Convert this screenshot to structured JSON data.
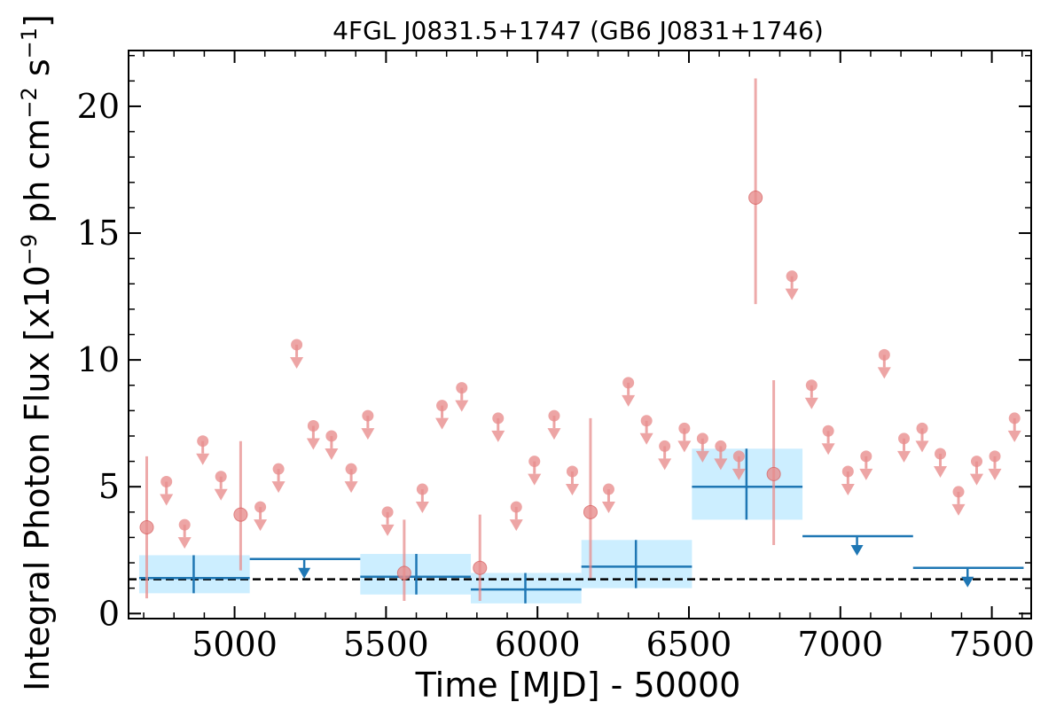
{
  "chart_data": {
    "type": "scatter",
    "title": "4FGL J0831.5+1747 (GB6 J0831+1746)",
    "xlabel": "Time [MJD] - 50000",
    "ylabel_parts": {
      "main": "Integral Photon Flux [x10",
      "exp1": "−9",
      "mid": " ph cm",
      "exp2": "−2",
      "mid2": " s",
      "exp3": "−1",
      "end": "]"
    },
    "xlim": [
      4650,
      7630
    ],
    "ylim": [
      -0.2,
      22.2
    ],
    "xticks": [
      5000,
      5500,
      6000,
      6500,
      7000,
      7500
    ],
    "yticks": [
      0,
      5,
      10,
      15,
      20
    ],
    "mean_flux": 1.35,
    "colors": {
      "short_bins": "#e88e8e",
      "long_bins": "#1f77b4",
      "long_band": "#cceeff",
      "mean_line": "#000000"
    },
    "short_bins_detections": [
      {
        "x": 4710,
        "y": 3.4,
        "yerr": [
          0.6,
          6.2
        ]
      },
      {
        "x": 5020,
        "y": 3.9,
        "yerr": [
          1.7,
          6.8
        ]
      },
      {
        "x": 5560,
        "y": 1.6,
        "yerr": [
          0.5,
          3.7
        ]
      },
      {
        "x": 5810,
        "y": 1.8,
        "yerr": [
          0.5,
          3.9
        ]
      },
      {
        "x": 6175,
        "y": 4.0,
        "yerr": [
          1.4,
          7.7
        ]
      },
      {
        "x": 6720,
        "y": 16.4,
        "yerr": [
          12.2,
          21.1
        ]
      },
      {
        "x": 6780,
        "y": 5.5,
        "yerr": [
          2.7,
          9.2
        ]
      }
    ],
    "short_bins_upper_limits": [
      {
        "x": 4775,
        "y": 5.2
      },
      {
        "x": 4835,
        "y": 3.5
      },
      {
        "x": 4895,
        "y": 6.8
      },
      {
        "x": 4955,
        "y": 5.4
      },
      {
        "x": 5085,
        "y": 4.2
      },
      {
        "x": 5145,
        "y": 5.7
      },
      {
        "x": 5205,
        "y": 10.6
      },
      {
        "x": 5260,
        "y": 7.4
      },
      {
        "x": 5320,
        "y": 7.0
      },
      {
        "x": 5385,
        "y": 5.7
      },
      {
        "x": 5440,
        "y": 7.8
      },
      {
        "x": 5505,
        "y": 4.0
      },
      {
        "x": 5620,
        "y": 4.9
      },
      {
        "x": 5685,
        "y": 8.2
      },
      {
        "x": 5750,
        "y": 8.9
      },
      {
        "x": 5870,
        "y": 7.7
      },
      {
        "x": 5930,
        "y": 4.2
      },
      {
        "x": 5990,
        "y": 6.0
      },
      {
        "x": 6055,
        "y": 7.8
      },
      {
        "x": 6115,
        "y": 5.6
      },
      {
        "x": 6235,
        "y": 4.9
      },
      {
        "x": 6300,
        "y": 9.1
      },
      {
        "x": 6360,
        "y": 7.6
      },
      {
        "x": 6420,
        "y": 6.6
      },
      {
        "x": 6485,
        "y": 7.3
      },
      {
        "x": 6545,
        "y": 6.9
      },
      {
        "x": 6605,
        "y": 6.6
      },
      {
        "x": 6665,
        "y": 6.2
      },
      {
        "x": 6840,
        "y": 13.3
      },
      {
        "x": 6905,
        "y": 9.0
      },
      {
        "x": 6960,
        "y": 7.2
      },
      {
        "x": 7025,
        "y": 5.6
      },
      {
        "x": 7085,
        "y": 6.2
      },
      {
        "x": 7145,
        "y": 10.2
      },
      {
        "x": 7210,
        "y": 6.9
      },
      {
        "x": 7270,
        "y": 7.3
      },
      {
        "x": 7330,
        "y": 6.3
      },
      {
        "x": 7390,
        "y": 4.8
      },
      {
        "x": 7450,
        "y": 6.0
      },
      {
        "x": 7510,
        "y": 6.2
      },
      {
        "x": 7575,
        "y": 7.7
      }
    ],
    "long_bins": [
      {
        "x_start": 4685,
        "x_end": 5050,
        "x_center": 4865,
        "y": 1.4,
        "ylo": 0.8,
        "yhi": 2.3,
        "upper_limit": false
      },
      {
        "x_start": 5050,
        "x_end": 5415,
        "x_center": 5230,
        "y": 2.15,
        "upper_limit": true
      },
      {
        "x_start": 5415,
        "x_end": 5780,
        "x_center": 5600,
        "y": 1.45,
        "ylo": 0.75,
        "yhi": 2.35,
        "upper_limit": false
      },
      {
        "x_start": 5780,
        "x_end": 6145,
        "x_center": 5960,
        "y": 0.95,
        "ylo": 0.4,
        "yhi": 1.6,
        "upper_limit": false
      },
      {
        "x_start": 6145,
        "x_end": 6510,
        "x_center": 6325,
        "y": 1.85,
        "ylo": 1.0,
        "yhi": 2.9,
        "upper_limit": false
      },
      {
        "x_start": 6510,
        "x_end": 6875,
        "x_center": 6690,
        "y": 5.0,
        "ylo": 3.7,
        "yhi": 6.5,
        "upper_limit": false
      },
      {
        "x_start": 6875,
        "x_end": 7240,
        "x_center": 7055,
        "y": 3.05,
        "upper_limit": true
      },
      {
        "x_start": 7240,
        "x_end": 7605,
        "x_center": 7420,
        "y": 1.8,
        "upper_limit": true
      }
    ]
  }
}
